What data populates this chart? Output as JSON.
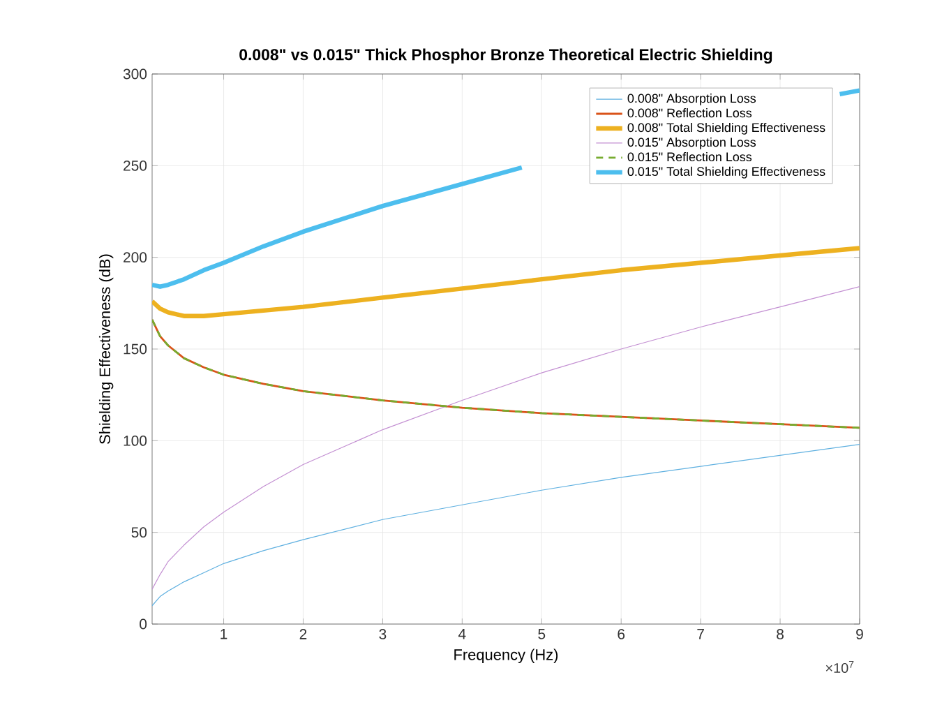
{
  "chart_data": {
    "type": "line",
    "title": "0.008\" vs 0.015\" Thick Phosphor Bronze Theoretical Electric Shielding",
    "xlabel": "Frequency (Hz)",
    "ylabel": "Shielding Effectiveness (dB)",
    "annotations": [
      "×10$^{7}$"
    ],
    "x": [
      0.1,
      0.2,
      0.3,
      0.5,
      0.75,
      1,
      1.5,
      2,
      3,
      4,
      5,
      6,
      7,
      8,
      9
    ],
    "series": [
      {
        "name": "0.008\" Absorption Loss",
        "color": "#5fb0e0",
        "values": [
          10,
          15,
          18,
          23,
          28,
          33,
          40,
          46,
          57,
          65,
          73,
          80,
          86,
          92,
          98
        ]
      },
      {
        "name": "0.008\" Reflection Loss",
        "color": "#d95319",
        "values": [
          166,
          157,
          152,
          145,
          140,
          136,
          131,
          127,
          122,
          118,
          115,
          113,
          111,
          109,
          107
        ]
      },
      {
        "name": "0.008\" Total Shielding Effectiveness",
        "color": "#edb120",
        "values": [
          176,
          172,
          170,
          168,
          168,
          169,
          171,
          173,
          178,
          183,
          188,
          193,
          197,
          201,
          205
        ]
      },
      {
        "name": "0.015\" Absorption Loss",
        "color": "#c38fd2",
        "values": [
          19,
          27,
          34,
          43,
          53,
          61,
          75,
          87,
          106,
          122,
          137,
          150,
          162,
          173,
          184
        ]
      },
      {
        "name": "0.015\" Reflection Loss",
        "color": "#77ac30",
        "line_style": "dashed",
        "values": [
          166,
          157,
          152,
          145,
          140,
          136,
          131,
          127,
          122,
          118,
          115,
          113,
          111,
          109,
          107
        ]
      },
      {
        "name": "0.015\" Total Shielding Effectiveness",
        "color": "#4dbeee",
        "x": [
          0.1,
          0.2,
          0.3,
          0.5,
          0.75,
          1,
          1.5,
          2,
          3,
          4,
          4.75,
          6,
          7,
          8.75,
          9
        ],
        "values": [
          185,
          184,
          185,
          188,
          193,
          197,
          206,
          214,
          228,
          240,
          249,
          null,
          null,
          289,
          291
        ]
      }
    ],
    "xlim": [
      0.1,
      9
    ],
    "xticks": [
      1,
      2,
      3,
      4,
      5,
      6,
      7,
      8,
      9
    ],
    "ylim": [
      0,
      300
    ],
    "yticks": [
      0,
      50,
      100,
      150,
      200,
      250,
      300
    ],
    "grid": true,
    "legend": "top right",
    "marker": "none",
    "line_style": "solid"
  }
}
